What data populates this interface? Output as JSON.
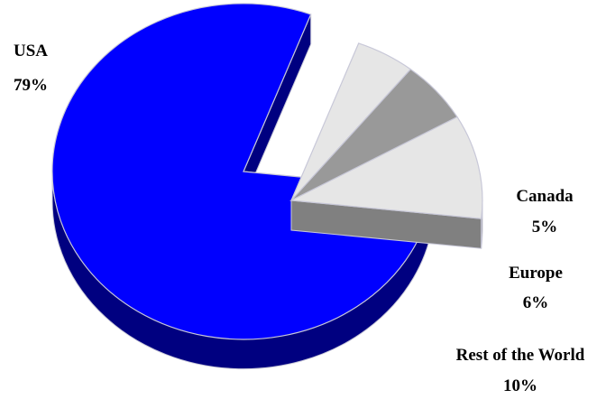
{
  "chart_data": {
    "type": "pie",
    "style": "3d-exploded",
    "categories": [
      "USA",
      "Canada",
      "Europe",
      "Rest of the World"
    ],
    "values": [
      79,
      5,
      6,
      10
    ],
    "labels": [
      {
        "name": "USA",
        "value": "79%"
      },
      {
        "name": "Canada",
        "value": "5%"
      },
      {
        "name": "Europe",
        "value": "6%"
      },
      {
        "name": "Rest of the World",
        "value": "10%"
      }
    ],
    "colors": {
      "usa_top": "#0000ff",
      "usa_side": "#000080",
      "canada_top": "#e6e6e6",
      "europe_top": "#999999",
      "rest_top": "#e6e6e6",
      "side_dark": "#666666",
      "side_mid": "#808080",
      "edge": "#c8c8d8"
    },
    "legend": "none",
    "grid": false
  }
}
